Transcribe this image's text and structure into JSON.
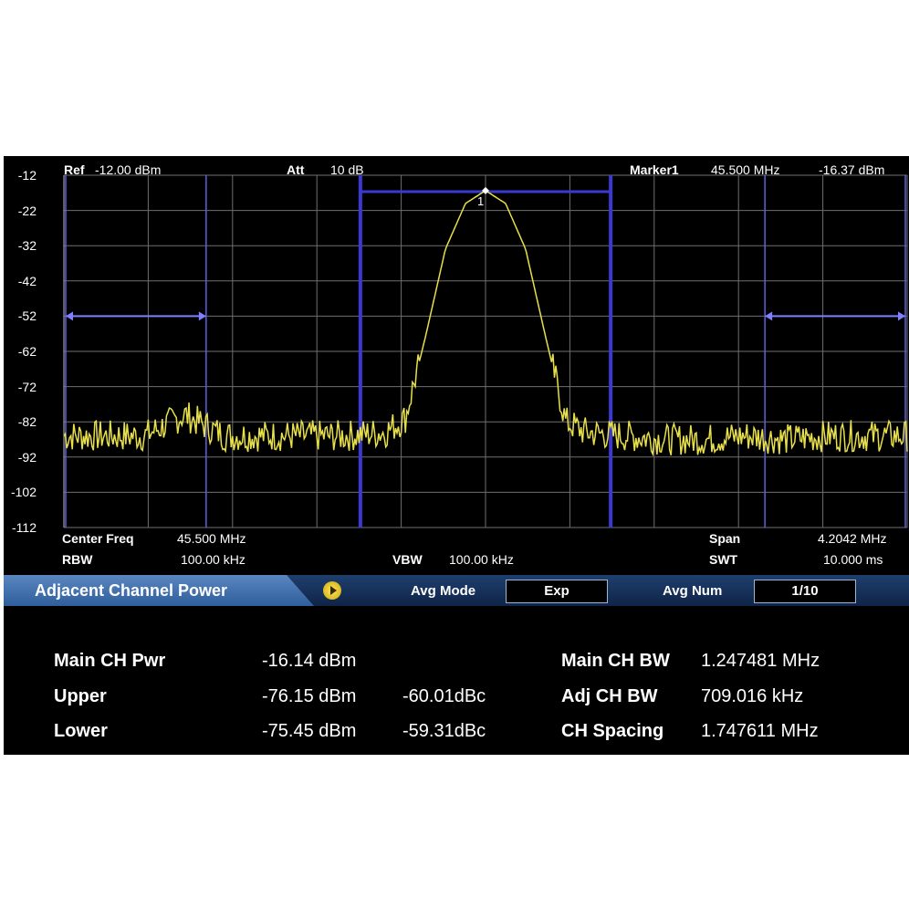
{
  "top_bar": {
    "ref_label": "Ref",
    "ref_value": "-12.00 dBm",
    "att_label": "Att",
    "att_value": "10 dB",
    "marker_label": "Marker1",
    "marker_freq": "45.500 MHz",
    "marker_level": "-16.37 dBm",
    "marker_number": "1"
  },
  "bottom_bar": {
    "center_label": "Center Freq",
    "center_value": "45.500 MHz",
    "rbw_label": "RBW",
    "rbw_value": "100.00 kHz",
    "vbw_label": "VBW",
    "vbw_value": "100.00 kHz",
    "span_label": "Span",
    "span_value": "4.2042 MHz",
    "swt_label": "SWT",
    "swt_value": "10.000 ms"
  },
  "mode_bar": {
    "title": "Adjacent Channel Power",
    "play_icon": "play-icon",
    "avg_mode_label": "Avg Mode",
    "avg_mode_value": "Exp",
    "avg_num_label": "Avg Num",
    "avg_num_value": "1/10"
  },
  "results": {
    "main_pwr_label": "Main CH Pwr",
    "main_pwr_value": "-16.14 dBm",
    "upper_label": "Upper",
    "upper_value": "-76.15 dBm",
    "upper_dbc": "-60.01dBc",
    "lower_label": "Lower",
    "lower_value": "-75.45 dBm",
    "lower_dbc": "-59.31dBc",
    "main_bw_label": "Main CH BW",
    "main_bw_value": "1.247481 MHz",
    "adj_bw_label": "Adj CH BW",
    "adj_bw_value": "709.016 kHz",
    "spacing_label": "CH Spacing",
    "spacing_value": "1.747611 MHz"
  },
  "colors": {
    "trace": "#e8e04a",
    "channel_bar": "#3a3ad0",
    "grid": "#6f6f6f"
  },
  "chart_data": {
    "type": "line",
    "y_tick_labels": [
      "-12",
      "-22",
      "-32",
      "-42",
      "-52",
      "-62",
      "-72",
      "-82",
      "-92",
      "-102",
      "-112"
    ],
    "ylim": [
      -112,
      -12
    ],
    "center_freq_mhz": 45.5,
    "span_mhz": 4.2042,
    "noise_floor_dbm": -87,
    "peak_dbm": -16.37,
    "series": [
      {
        "x": [
          43.4,
          43.6,
          43.8,
          44.0,
          44.2,
          44.4,
          44.6,
          44.8,
          45.0,
          45.1,
          45.2,
          45.3,
          45.4,
          45.5,
          45.6,
          45.7,
          45.8,
          45.9,
          46.0,
          46.2,
          46.4,
          46.6,
          46.8,
          47.0,
          47.2,
          47.4,
          47.6
        ],
        "values": [
          -86,
          -86,
          -86,
          -80,
          -86,
          -86,
          -86,
          -86,
          -85,
          -81,
          -58,
          -33,
          -20,
          -16.37,
          -20,
          -33,
          -58,
          -82,
          -85,
          -86,
          -87,
          -87,
          -86,
          -87,
          -86,
          -86,
          -86
        ]
      }
    ],
    "channels": {
      "main": [
        44.876,
        46.124
      ],
      "lower_adj": [
        43.398,
        44.107
      ],
      "upper_adj": [
        46.893,
        47.602
      ]
    }
  }
}
